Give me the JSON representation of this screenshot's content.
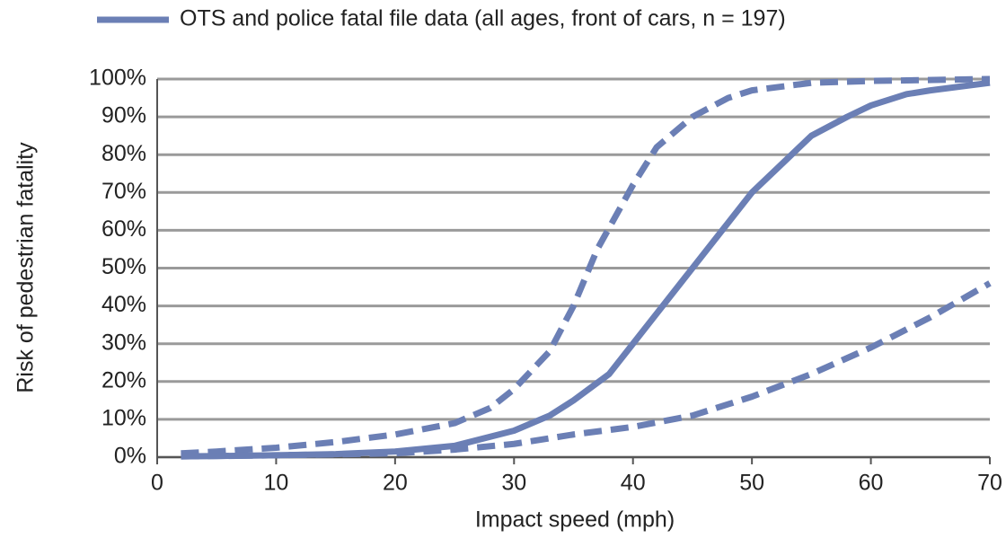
{
  "chart_data": {
    "type": "line",
    "xlabel": "Impact speed (mph)",
    "ylabel": "Risk of pedestrian fatality",
    "legend": "top",
    "grid": true,
    "xlim": [
      0,
      70
    ],
    "xticks": [
      0,
      10,
      20,
      30,
      40,
      50,
      60,
      70
    ],
    "ylim": [
      0,
      100
    ],
    "yticks": [
      {
        "value": 0,
        "label": "0%"
      },
      {
        "value": 10,
        "label": "10%"
      },
      {
        "value": 20,
        "label": "20%"
      },
      {
        "value": 30,
        "label": "30%"
      },
      {
        "value": 40,
        "label": "40%"
      },
      {
        "value": 50,
        "label": "50%"
      },
      {
        "value": 60,
        "label": "60%"
      },
      {
        "value": 70,
        "label": "70%"
      },
      {
        "value": 80,
        "label": "80%"
      },
      {
        "value": 90,
        "label": "90%"
      },
      {
        "value": 100,
        "label": "100%"
      }
    ],
    "series": [
      {
        "name": "OTS and police fatal file data (all ages, front of cars, n = 197)",
        "color": "#6b7fb5",
        "dashed": false,
        "x": [
          2,
          5,
          10,
          15,
          20,
          25,
          30,
          33,
          35,
          38,
          40,
          42,
          45,
          48,
          50,
          53,
          55,
          58,
          60,
          63,
          65,
          70
        ],
        "values": [
          0.2,
          0.3,
          0.5,
          0.8,
          1.5,
          3,
          7,
          11,
          15,
          22,
          30,
          38,
          50,
          62,
          70,
          79,
          85,
          90,
          93,
          96,
          97,
          99
        ]
      },
      {
        "color": "#6b7fb5",
        "dashed": true,
        "x": [
          2,
          5,
          10,
          15,
          20,
          25,
          28,
          30,
          33,
          35,
          37,
          40,
          42,
          45,
          48,
          50,
          55,
          60,
          70
        ],
        "values": [
          1,
          1.5,
          2.5,
          4,
          6,
          9,
          13,
          18,
          28,
          40,
          55,
          72,
          82,
          90,
          95,
          97,
          99,
          99.5,
          100
        ]
      },
      {
        "color": "#6b7fb5",
        "dashed": true,
        "x": [
          2,
          10,
          20,
          25,
          30,
          35,
          40,
          45,
          50,
          55,
          60,
          65,
          70
        ],
        "values": [
          0.2,
          0.5,
          1,
          2,
          3.5,
          6,
          8,
          11,
          16,
          22,
          29,
          37,
          46
        ]
      }
    ]
  }
}
